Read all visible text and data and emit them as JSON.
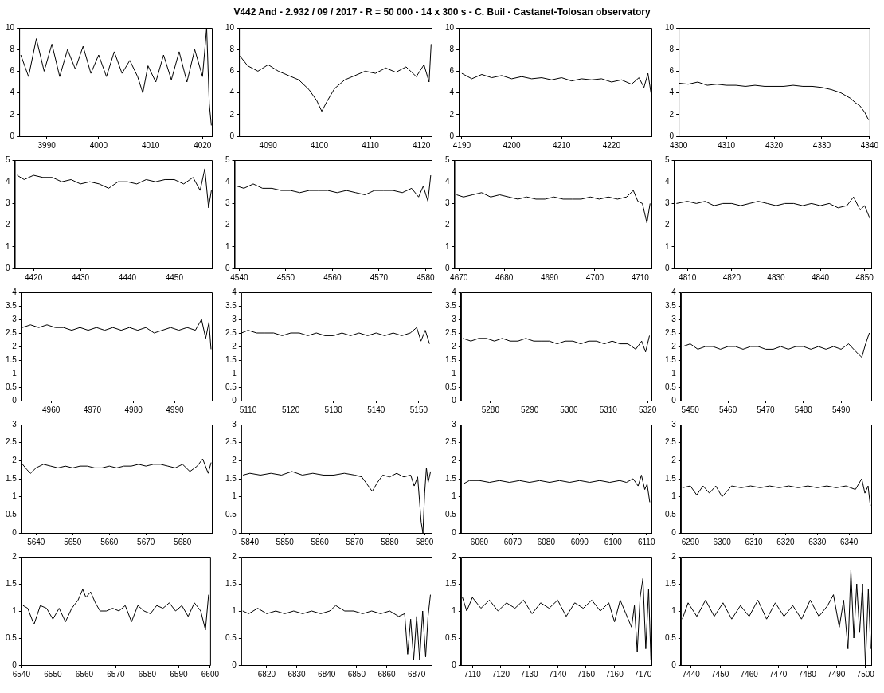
{
  "chart_data": [
    {
      "type": "other",
      "title": "V442 And - 2.932 / 09 / 2017 - R = 50 000 - 14 x 300 s - C. Buil - Castanet-Tolosan observatory"
    },
    {
      "type": "line",
      "color": "#000000",
      "xlim": [
        3984.7,
        4021.8
      ],
      "xticks": [
        3990,
        4000,
        4010,
        4020
      ],
      "ylim": [
        0,
        10
      ],
      "yticks": [
        0,
        2,
        4,
        6,
        8,
        10
      ],
      "x": [
        3985,
        3986.5,
        3988,
        3989.5,
        3991,
        3992.5,
        3994,
        3995.5,
        3997,
        3998.5,
        4000,
        4001.5,
        4003,
        4004.5,
        4006,
        4007.5,
        4008.5,
        4009.5,
        4011,
        4012.5,
        4014,
        4015.5,
        4017,
        4018.5,
        4020,
        4020.8,
        4021.3,
        4021.7
      ],
      "values": [
        7.5,
        5.5,
        9,
        6,
        8.5,
        5.5,
        8,
        6.2,
        8.3,
        5.8,
        7.5,
        5.5,
        7.8,
        5.8,
        7,
        5.5,
        4,
        6.5,
        5,
        7.5,
        5.2,
        7.8,
        5,
        8,
        5.5,
        10,
        3,
        1
      ]
    },
    {
      "type": "line",
      "color": "#000000",
      "xlim": [
        4084.3,
        4122
      ],
      "xticks": [
        4090,
        4100,
        4110,
        4120
      ],
      "ylim": [
        0,
        10
      ],
      "yticks": [
        0,
        2,
        4,
        6,
        8,
        10
      ],
      "x": [
        4084.5,
        4086,
        4088,
        4090,
        4092,
        4094,
        4096,
        4098,
        4099.5,
        4100.5,
        4101.5,
        4103,
        4105,
        4107,
        4109,
        4111,
        4113,
        4115,
        4117,
        4119,
        4120.5,
        4121.5,
        4121.9
      ],
      "values": [
        7.4,
        6.5,
        6.0,
        6.6,
        6.0,
        5.6,
        5.2,
        4.3,
        3.3,
        2.3,
        3.2,
        4.4,
        5.2,
        5.6,
        6.0,
        5.8,
        6.3,
        5.9,
        6.4,
        5.5,
        6.6,
        5.0,
        8.5
      ]
    },
    {
      "type": "line",
      "color": "#000000",
      "xlim": [
        4189.4,
        4228
      ],
      "xticks": [
        4190,
        4200,
        4210,
        4220
      ],
      "ylim": [
        0,
        10
      ],
      "yticks": [
        0,
        2,
        4,
        6,
        8,
        10
      ],
      "x": [
        4190,
        4192,
        4194,
        4196,
        4198,
        4200,
        4202,
        4204,
        4206,
        4208,
        4210,
        4212,
        4214,
        4216,
        4218,
        4220,
        4222,
        4224,
        4225.5,
        4226.5,
        4227.3,
        4227.9
      ],
      "values": [
        5.8,
        5.3,
        5.7,
        5.4,
        5.6,
        5.3,
        5.5,
        5.3,
        5.4,
        5.2,
        5.4,
        5.1,
        5.3,
        5.2,
        5.3,
        5.0,
        5.2,
        4.8,
        5.4,
        4.5,
        5.8,
        4.0
      ]
    },
    {
      "type": "line",
      "color": "#000000",
      "xlim": [
        4300,
        4340
      ],
      "xticks": [
        4300,
        4310,
        4320,
        4330,
        4340
      ],
      "ylim": [
        0,
        10
      ],
      "yticks": [
        0,
        2,
        4,
        6,
        8,
        10
      ],
      "x": [
        4300,
        4302,
        4304,
        4306,
        4308,
        4310,
        4312,
        4314,
        4316,
        4318,
        4320,
        4322,
        4324,
        4326,
        4328,
        4330,
        4332,
        4334,
        4336,
        4337,
        4338,
        4339,
        4339.8
      ],
      "values": [
        4.9,
        4.8,
        5.0,
        4.7,
        4.8,
        4.7,
        4.7,
        4.6,
        4.7,
        4.6,
        4.6,
        4.6,
        4.7,
        4.6,
        4.6,
        4.5,
        4.3,
        4.0,
        3.5,
        3.1,
        2.8,
        2.2,
        1.5
      ]
    },
    {
      "type": "line",
      "color": "#000000",
      "xlim": [
        4416,
        4458
      ],
      "xticks": [
        4420,
        4430,
        4440,
        4450
      ],
      "ylim": [
        0,
        5
      ],
      "yticks": [
        0,
        1,
        2,
        3,
        4,
        5
      ],
      "x": [
        4416.5,
        4418,
        4420,
        4422,
        4424,
        4426,
        4428,
        4430,
        4432,
        4434,
        4436,
        4438,
        4440,
        4442,
        4444,
        4446,
        4448,
        4450,
        4452,
        4454,
        4455.5,
        4456.5,
        4457.3,
        4457.9
      ],
      "values": [
        4.3,
        4.1,
        4.3,
        4.2,
        4.2,
        4.0,
        4.1,
        3.9,
        4.0,
        3.9,
        3.7,
        4.0,
        4.0,
        3.9,
        4.1,
        4.0,
        4.1,
        4.1,
        3.9,
        4.2,
        3.6,
        4.6,
        2.8,
        3.6
      ]
    },
    {
      "type": "line",
      "color": "#000000",
      "xlim": [
        4539,
        4581.3
      ],
      "xticks": [
        4540,
        4550,
        4560,
        4570,
        4580
      ],
      "ylim": [
        0,
        5
      ],
      "yticks": [
        0,
        1,
        2,
        3,
        4,
        5
      ],
      "x": [
        4539.5,
        4541,
        4543,
        4545,
        4547,
        4549,
        4551,
        4553,
        4555,
        4557,
        4559,
        4561,
        4563,
        4565,
        4567,
        4569,
        4571,
        4573,
        4575,
        4577,
        4578.5,
        4579.5,
        4580.5,
        4581.1
      ],
      "values": [
        3.8,
        3.7,
        3.9,
        3.7,
        3.7,
        3.6,
        3.6,
        3.5,
        3.6,
        3.6,
        3.6,
        3.5,
        3.6,
        3.5,
        3.4,
        3.6,
        3.6,
        3.6,
        3.5,
        3.7,
        3.3,
        3.8,
        3.1,
        4.3
      ]
    },
    {
      "type": "line",
      "color": "#000000",
      "xlim": [
        4669,
        4712.5
      ],
      "xticks": [
        4670,
        4680,
        4690,
        4700,
        4710
      ],
      "ylim": [
        0,
        5
      ],
      "yticks": [
        0,
        1,
        2,
        3,
        4,
        5
      ],
      "x": [
        4669.5,
        4671,
        4673,
        4675,
        4677,
        4679,
        4681,
        4683,
        4685,
        4687,
        4689,
        4691,
        4693,
        4695,
        4697,
        4699,
        4701,
        4703,
        4705,
        4707,
        4708.5,
        4709.5,
        4710.5,
        4711.5,
        4712.2
      ],
      "values": [
        3.4,
        3.3,
        3.4,
        3.5,
        3.3,
        3.4,
        3.3,
        3.2,
        3.3,
        3.2,
        3.2,
        3.3,
        3.2,
        3.2,
        3.2,
        3.3,
        3.2,
        3.3,
        3.2,
        3.3,
        3.6,
        3.1,
        3.0,
        2.1,
        3.0
      ]
    },
    {
      "type": "line",
      "color": "#000000",
      "xlim": [
        4807,
        4851.5
      ],
      "xticks": [
        4810,
        4820,
        4830,
        4840,
        4850
      ],
      "ylim": [
        0,
        5
      ],
      "yticks": [
        0,
        1,
        2,
        3,
        4,
        5
      ],
      "x": [
        4807.5,
        4810,
        4812,
        4814,
        4816,
        4818,
        4820,
        4822,
        4824,
        4826,
        4828,
        4830,
        4832,
        4834,
        4836,
        4838,
        4840,
        4842,
        4844,
        4846,
        4847.5,
        4849,
        4850,
        4851.2
      ],
      "values": [
        3.0,
        3.1,
        3.0,
        3.1,
        2.9,
        3.0,
        3.0,
        2.9,
        3.0,
        3.1,
        3.0,
        2.9,
        3.0,
        3.0,
        2.9,
        3.0,
        2.9,
        3.0,
        2.8,
        2.9,
        3.3,
        2.7,
        2.9,
        2.3
      ]
    },
    {
      "type": "line",
      "color": "#000000",
      "xlim": [
        4952.8,
        4999
      ],
      "xticks": [
        4960,
        4970,
        4980,
        4990
      ],
      "ylim": [
        0,
        4
      ],
      "yticks": [
        0,
        0.5,
        1,
        1.5,
        2,
        2.5,
        3,
        3.5,
        4
      ],
      "x": [
        4953,
        4955,
        4957,
        4959,
        4961,
        4963,
        4965,
        4967,
        4969,
        4971,
        4973,
        4975,
        4977,
        4979,
        4981,
        4983,
        4985,
        4987,
        4989,
        4991,
        4993,
        4995,
        4996.5,
        4997.5,
        4998.3,
        4998.8
      ],
      "values": [
        2.7,
        2.8,
        2.7,
        2.8,
        2.7,
        2.7,
        2.6,
        2.7,
        2.6,
        2.7,
        2.6,
        2.7,
        2.6,
        2.7,
        2.6,
        2.7,
        2.5,
        2.6,
        2.7,
        2.6,
        2.7,
        2.6,
        3.0,
        2.3,
        2.9,
        1.9
      ]
    },
    {
      "type": "line",
      "color": "#000000",
      "xlim": [
        5108.4,
        5153
      ],
      "xticks": [
        5110,
        5120,
        5130,
        5140,
        5150
      ],
      "ylim": [
        0,
        4
      ],
      "yticks": [
        0,
        0.5,
        1,
        1.5,
        2,
        2.5,
        3,
        3.5,
        4
      ],
      "x": [
        5108.5,
        5110,
        5112,
        5114,
        5116,
        5118,
        5120,
        5122,
        5124,
        5126,
        5128,
        5130,
        5132,
        5134,
        5136,
        5138,
        5140,
        5142,
        5144,
        5146,
        5148,
        5149.5,
        5150.5,
        5151.5,
        5152.5
      ],
      "values": [
        2.5,
        2.6,
        2.5,
        2.5,
        2.5,
        2.4,
        2.5,
        2.5,
        2.4,
        2.5,
        2.4,
        2.4,
        2.5,
        2.4,
        2.5,
        2.4,
        2.5,
        2.4,
        2.5,
        2.4,
        2.5,
        2.7,
        2.2,
        2.6,
        2.1
      ]
    },
    {
      "type": "line",
      "color": "#000000",
      "xlim": [
        5272.5,
        5321
      ],
      "xticks": [
        5280,
        5290,
        5300,
        5310,
        5320
      ],
      "ylim": [
        0,
        4
      ],
      "yticks": [
        0,
        0.5,
        1,
        1.5,
        2,
        2.5,
        3,
        3.5,
        4
      ],
      "x": [
        5273,
        5275,
        5277,
        5279,
        5281,
        5283,
        5285,
        5287,
        5289,
        5291,
        5293,
        5295,
        5297,
        5299,
        5301,
        5303,
        5305,
        5307,
        5309,
        5311,
        5313,
        5315,
        5317,
        5318.5,
        5319.5,
        5320.5
      ],
      "values": [
        2.3,
        2.2,
        2.3,
        2.3,
        2.2,
        2.3,
        2.2,
        2.2,
        2.3,
        2.2,
        2.2,
        2.2,
        2.1,
        2.2,
        2.2,
        2.1,
        2.2,
        2.2,
        2.1,
        2.2,
        2.1,
        2.1,
        1.9,
        2.2,
        1.8,
        2.4
      ]
    },
    {
      "type": "line",
      "color": "#000000",
      "xlim": [
        5447.5,
        5498
      ],
      "xticks": [
        5450,
        5460,
        5470,
        5480,
        5490
      ],
      "ylim": [
        0,
        4
      ],
      "yticks": [
        0,
        0.5,
        1,
        1.5,
        2,
        2.5,
        3,
        3.5,
        4
      ],
      "x": [
        5448,
        5450,
        5452,
        5454,
        5456,
        5458,
        5460,
        5462,
        5464,
        5466,
        5468,
        5470,
        5472,
        5474,
        5476,
        5478,
        5480,
        5482,
        5484,
        5486,
        5488,
        5490,
        5492,
        5494,
        5495.5,
        5496.5,
        5497.5
      ],
      "values": [
        2.0,
        2.1,
        1.9,
        2.0,
        2.0,
        1.9,
        2.0,
        2.0,
        1.9,
        2.0,
        2.0,
        1.9,
        1.9,
        2.0,
        1.9,
        2.0,
        2.0,
        1.9,
        2.0,
        1.9,
        2.0,
        1.9,
        2.1,
        1.8,
        1.6,
        2.1,
        2.5
      ]
    },
    {
      "type": "line",
      "color": "#000000",
      "xlim": [
        5636,
        5688
      ],
      "xticks": [
        5640,
        5650,
        5660,
        5670,
        5680
      ],
      "ylim": [
        0,
        3
      ],
      "yticks": [
        0,
        0.5,
        1,
        1.5,
        2,
        2.5,
        3
      ],
      "x": [
        5636.3,
        5637.5,
        5638.5,
        5640,
        5642,
        5644,
        5646,
        5648,
        5650,
        5652,
        5654,
        5656,
        5658,
        5660,
        5662,
        5664,
        5666,
        5668,
        5670,
        5672,
        5674,
        5676,
        5678,
        5680,
        5682,
        5684,
        5685.5,
        5687,
        5687.8
      ],
      "values": [
        1.9,
        1.75,
        1.65,
        1.8,
        1.9,
        1.85,
        1.8,
        1.85,
        1.8,
        1.85,
        1.85,
        1.8,
        1.8,
        1.85,
        1.8,
        1.85,
        1.85,
        1.9,
        1.85,
        1.9,
        1.9,
        1.85,
        1.8,
        1.9,
        1.7,
        1.85,
        2.05,
        1.65,
        1.95
      ]
    },
    {
      "type": "line",
      "color": "#000000",
      "xlim": [
        5837.5,
        5892
      ],
      "xticks": [
        5840,
        5850,
        5860,
        5870,
        5880,
        5890
      ],
      "ylim": [
        0,
        3
      ],
      "yticks": [
        0,
        0.5,
        1,
        1.5,
        2,
        2.5,
        3
      ],
      "x": [
        5838,
        5840,
        5843,
        5846,
        5849,
        5852,
        5855,
        5858,
        5861,
        5864,
        5867,
        5870,
        5872,
        5873.5,
        5875,
        5876.5,
        5878,
        5880,
        5882,
        5884,
        5886,
        5887,
        5888,
        5889,
        5889.5,
        5890,
        5890.5,
        5891,
        5891.7
      ],
      "values": [
        1.6,
        1.65,
        1.6,
        1.65,
        1.6,
        1.7,
        1.6,
        1.65,
        1.6,
        1.6,
        1.65,
        1.6,
        1.55,
        1.35,
        1.15,
        1.4,
        1.6,
        1.55,
        1.65,
        1.55,
        1.6,
        1.3,
        1.55,
        0.3,
        0,
        1.1,
        1.8,
        1.4,
        1.7
      ]
    },
    {
      "type": "line",
      "color": "#000000",
      "xlim": [
        6054.5,
        6111.5
      ],
      "xticks": [
        6060,
        6070,
        6080,
        6090,
        6100,
        6110
      ],
      "ylim": [
        0,
        3
      ],
      "yticks": [
        0,
        0.5,
        1,
        1.5,
        2,
        2.5,
        3
      ],
      "x": [
        6055,
        6057,
        6060,
        6063,
        6066,
        6069,
        6072,
        6075,
        6078,
        6081,
        6084,
        6087,
        6090,
        6093,
        6096,
        6099,
        6102,
        6104,
        6106,
        6107.5,
        6108.5,
        6109.5,
        6110.2,
        6111
      ],
      "values": [
        1.35,
        1.45,
        1.45,
        1.4,
        1.45,
        1.4,
        1.45,
        1.4,
        1.45,
        1.4,
        1.45,
        1.4,
        1.45,
        1.4,
        1.45,
        1.4,
        1.45,
        1.4,
        1.5,
        1.3,
        1.6,
        1.2,
        1.35,
        0.85
      ]
    },
    {
      "type": "line",
      "color": "#000000",
      "xlim": [
        6287,
        6347
      ],
      "xticks": [
        6290,
        6300,
        6310,
        6320,
        6330,
        6340
      ],
      "ylim": [
        0,
        3
      ],
      "yticks": [
        0,
        0.5,
        1,
        1.5,
        2,
        2.5,
        3
      ],
      "x": [
        6287.5,
        6290,
        6292,
        6294,
        6296,
        6298,
        6300,
        6303,
        6306,
        6309,
        6312,
        6315,
        6318,
        6321,
        6324,
        6327,
        6330,
        6333,
        6336,
        6339,
        6342,
        6344,
        6345,
        6346,
        6346.7
      ],
      "values": [
        1.25,
        1.3,
        1.05,
        1.3,
        1.1,
        1.3,
        1.0,
        1.3,
        1.25,
        1.3,
        1.25,
        1.3,
        1.25,
        1.3,
        1.25,
        1.3,
        1.25,
        1.3,
        1.25,
        1.3,
        1.2,
        1.5,
        1.1,
        1.3,
        0.75
      ]
    },
    {
      "type": "line",
      "color": "#000000",
      "xlim": [
        6540,
        6600
      ],
      "xticks": [
        6540,
        6550,
        6560,
        6570,
        6580,
        6590,
        6600
      ],
      "ylim": [
        0,
        2
      ],
      "yticks": [
        0,
        0.5,
        1,
        1.5,
        2
      ],
      "x": [
        6540.5,
        6542,
        6544,
        6546,
        6548,
        6550,
        6552,
        6554,
        6556,
        6558,
        6559.5,
        6560.5,
        6562,
        6563.5,
        6565,
        6567,
        6569,
        6571,
        6573,
        6575,
        6577,
        6579,
        6581,
        6583,
        6585,
        6587,
        6589,
        6591,
        6593,
        6595,
        6597,
        6598.5,
        6599.5
      ],
      "values": [
        1.1,
        1.05,
        0.75,
        1.1,
        1.05,
        0.85,
        1.05,
        0.8,
        1.05,
        1.2,
        1.4,
        1.25,
        1.35,
        1.15,
        1.0,
        1.0,
        1.05,
        1.0,
        1.1,
        0.8,
        1.1,
        1.0,
        0.95,
        1.1,
        1.05,
        1.15,
        1.0,
        1.1,
        0.9,
        1.15,
        1.0,
        0.65,
        1.3
      ]
    },
    {
      "type": "line",
      "color": "#000000",
      "xlim": [
        6811.5,
        6875
      ],
      "xticks": [
        6820,
        6830,
        6840,
        6850,
        6860,
        6870
      ],
      "ylim": [
        0,
        2
      ],
      "yticks": [
        0,
        0.5,
        1,
        1.5,
        2
      ],
      "x": [
        6812,
        6814,
        6817,
        6820,
        6823,
        6826,
        6829,
        6832,
        6835,
        6838,
        6841,
        6843,
        6846,
        6849,
        6852,
        6855,
        6858,
        6861,
        6864,
        6866,
        6867,
        6868,
        6869,
        6870,
        6871,
        6872,
        6873,
        6873.8,
        6874.6
      ],
      "values": [
        1.0,
        0.95,
        1.05,
        0.95,
        1.0,
        0.95,
        1.0,
        0.95,
        1.0,
        0.95,
        1.0,
        1.1,
        1.0,
        1.0,
        0.95,
        1.0,
        0.95,
        1.0,
        0.9,
        0.95,
        0.2,
        0.85,
        0.1,
        0.9,
        0.1,
        1.0,
        0.15,
        0.9,
        1.3
      ]
    },
    {
      "type": "line",
      "color": "#000000",
      "xlim": [
        7106,
        7173
      ],
      "xticks": [
        7110,
        7120,
        7130,
        7140,
        7150,
        7160,
        7170
      ],
      "ylim": [
        0,
        2
      ],
      "yticks": [
        0,
        0.5,
        1,
        1.5,
        2
      ],
      "x": [
        7106.5,
        7108,
        7110,
        7113,
        7116,
        7119,
        7122,
        7125,
        7128,
        7131,
        7134,
        7137,
        7140,
        7143,
        7146,
        7149,
        7152,
        7155,
        7158,
        7160,
        7162,
        7164,
        7166,
        7167,
        7168,
        7169,
        7170,
        7171,
        7172,
        7172.8
      ],
      "values": [
        1.25,
        1.0,
        1.25,
        1.05,
        1.2,
        1.0,
        1.15,
        1.05,
        1.2,
        0.95,
        1.15,
        1.05,
        1.2,
        0.9,
        1.15,
        1.05,
        1.2,
        1.0,
        1.15,
        0.8,
        1.2,
        0.95,
        0.7,
        1.1,
        0.25,
        1.25,
        1.6,
        0.3,
        1.4,
        0.1
      ]
    },
    {
      "type": "line",
      "color": "#000000",
      "xlim": [
        7436.5,
        7502
      ],
      "xticks": [
        7440,
        7450,
        7460,
        7470,
        7480,
        7490,
        7500
      ],
      "ylim": [
        0,
        2
      ],
      "yticks": [
        0,
        0.5,
        1,
        1.5,
        2
      ],
      "x": [
        7437,
        7439,
        7442,
        7445,
        7448,
        7451,
        7454,
        7457,
        7460,
        7463,
        7466,
        7469,
        7472,
        7475,
        7478,
        7481,
        7484,
        7487,
        7489,
        7491,
        7492.5,
        7494,
        7495,
        7496,
        7497,
        7498,
        7499,
        7500,
        7501,
        7501.8
      ],
      "values": [
        0.85,
        1.15,
        0.9,
        1.2,
        0.9,
        1.15,
        0.85,
        1.1,
        0.9,
        1.2,
        0.85,
        1.15,
        0.9,
        1.1,
        0.85,
        1.2,
        0.9,
        1.1,
        1.3,
        0.7,
        1.2,
        0.3,
        1.75,
        0.5,
        1.5,
        0.6,
        1.5,
        0,
        1.4,
        0.3
      ]
    }
  ]
}
